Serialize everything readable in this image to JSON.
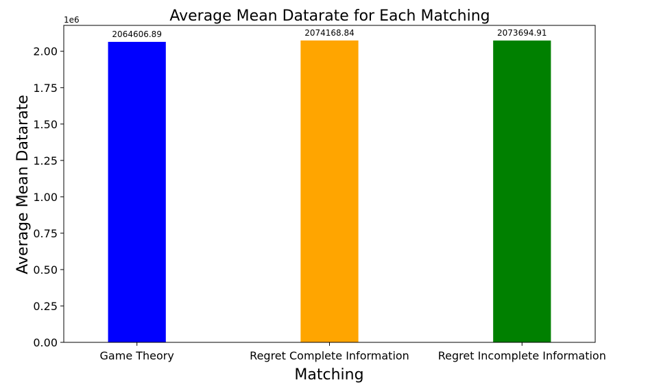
{
  "chart_data": {
    "type": "bar",
    "title": "Average Mean Datarate for Each Matching",
    "xlabel": "Matching",
    "ylabel": "Average Mean Datarate",
    "y_offset_label": "1e6",
    "categories": [
      "Game Theory",
      "Regret Complete Information",
      "Regret Incomplete Information"
    ],
    "values": [
      2064606.89,
      2074168.84,
      2073694.91
    ],
    "value_labels": [
      "2064606.89",
      "2074168.84",
      "2073694.91"
    ],
    "colors": [
      "#0000ff",
      "#ffa500",
      "#008000"
    ],
    "ylim": [
      0,
      2177877.28
    ],
    "yticks": [
      0,
      250000,
      500000,
      750000,
      1000000,
      1250000,
      1500000,
      1750000,
      2000000
    ],
    "ytick_labels": [
      "0.00",
      "0.25",
      "0.50",
      "0.75",
      "1.00",
      "1.25",
      "1.50",
      "1.75",
      "2.00"
    ],
    "grid": false,
    "legend": "none"
  }
}
